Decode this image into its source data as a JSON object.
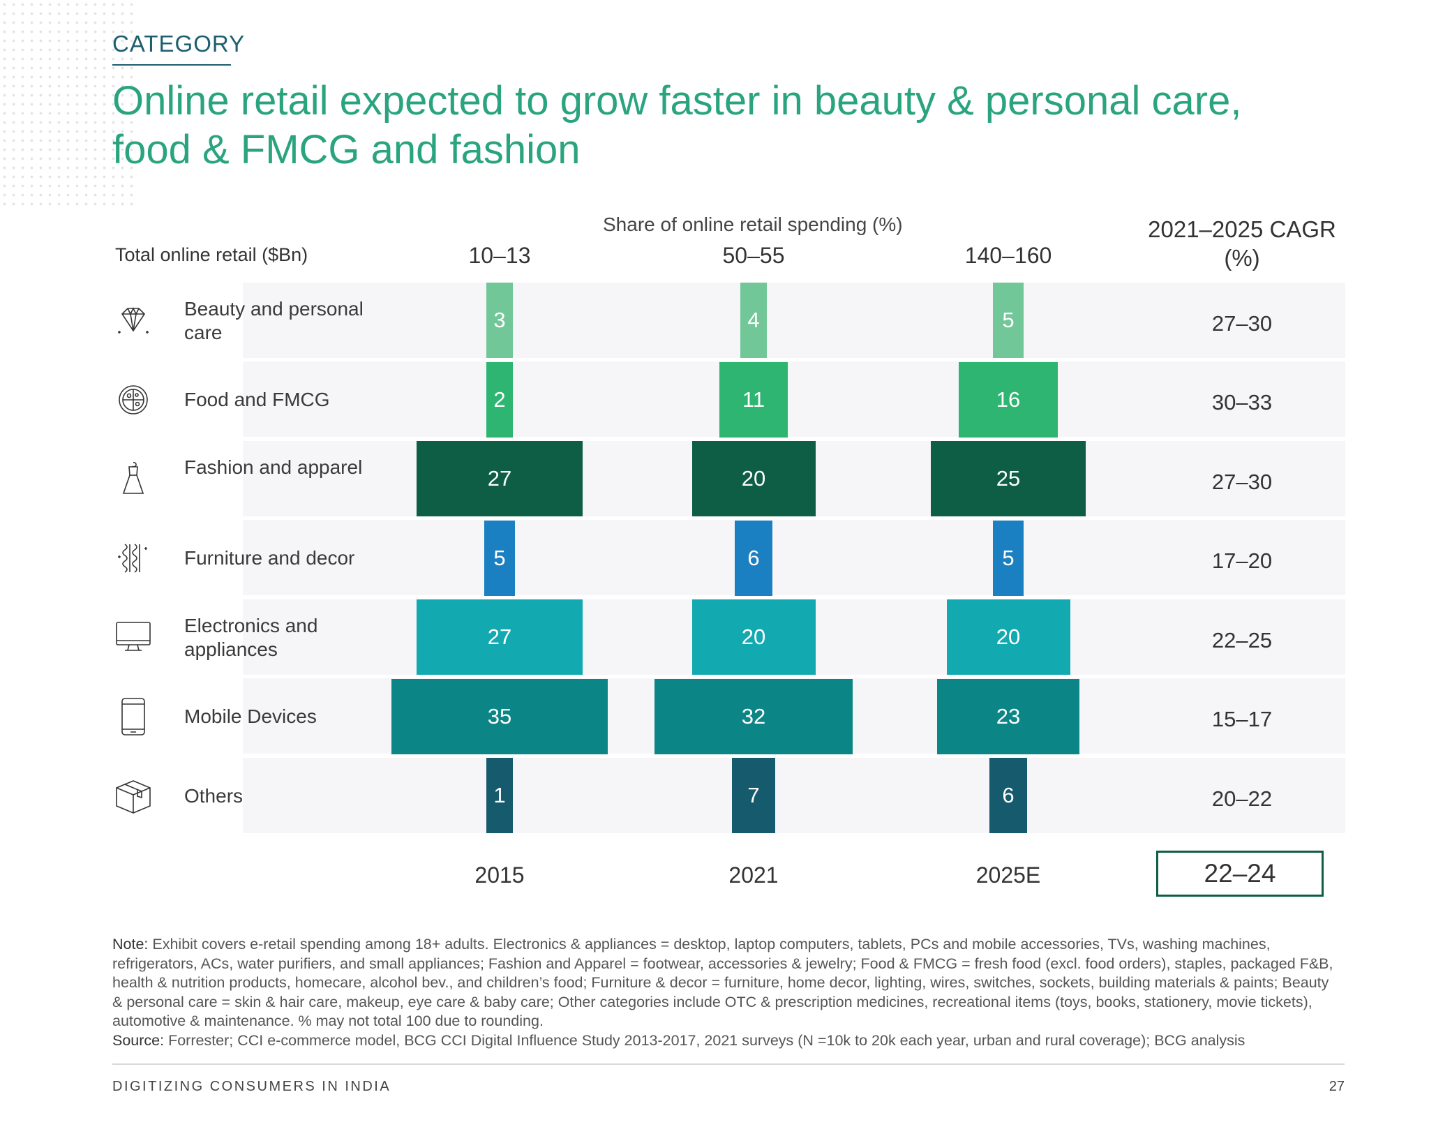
{
  "header": {
    "category": "CATEGORY",
    "title": "Online retail expected to grow faster in beauty & personal care, food & FMCG and fashion"
  },
  "chart_data": {
    "type": "table",
    "subtitle": "Share of online retail spending (%)",
    "total_label": "Total online retail ($Bn)",
    "cagr_header": "2021–2025 CAGR (%)",
    "years": [
      "2015",
      "2021",
      "2025E"
    ],
    "totals": [
      "10–13",
      "50–55",
      "140–160"
    ],
    "categories": [
      {
        "name": "Beauty and personal care",
        "icon": "diamond-icon",
        "values": [
          3,
          4,
          5
        ],
        "cagr": "27–30",
        "color": "#71c798"
      },
      {
        "name": "Food and FMCG",
        "icon": "pizza-icon",
        "values": [
          2,
          11,
          16
        ],
        "cagr": "30–33",
        "color": "#2db571"
      },
      {
        "name": "Fashion and apparel",
        "icon": "dress-icon",
        "values": [
          27,
          20,
          25
        ],
        "cagr": "27–30",
        "color": "#0d5e44"
      },
      {
        "name": "Furniture and decor",
        "icon": "lamp-icon",
        "values": [
          5,
          6,
          5
        ],
        "cagr": "17–20",
        "color": "#1b80c2"
      },
      {
        "name": "Electronics and appliances",
        "icon": "monitor-icon",
        "values": [
          27,
          20,
          20
        ],
        "cagr": "22–25",
        "color": "#13a9b0"
      },
      {
        "name": "Mobile Devices",
        "icon": "phone-icon",
        "values": [
          35,
          32,
          23
        ],
        "cagr": "15–17",
        "color": "#0b8585"
      },
      {
        "name": "Others",
        "icon": "box-icon",
        "values": [
          1,
          7,
          6
        ],
        "cagr": "20–22",
        "color": "#165a6e"
      }
    ],
    "total_cagr": "22–24"
  },
  "note": {
    "note_label": "Note:",
    "note_text": "Exhibit covers e-retail spending among 18+ adults. Electronics & appliances = desktop, laptop computers, tablets, PCs and mobile accessories, TVs, washing machines, refrigerators, ACs, water purifiers, and small appliances; Fashion and Apparel = footwear, accessories & jewelry; Food & FMCG = fresh food (excl. food orders), staples, packaged F&B, health & nutrition products, homecare, alcohol bev., and children’s food; Furniture & decor = furniture, home decor, lighting, wires, switches, sockets, building materials & paints; Beauty & personal care = skin & hair care, makeup, eye care & baby care; Other categories include OTC & prescription medicines, recreational items (toys, books, stationery, movie tickets), automotive & maintenance. % may not total 100 due to rounding.",
    "source_label": "Source:",
    "source_text": "Forrester; CCI e-commerce model, BCG CCI Digital Influence Study 2013-2017, 2021 surveys (N =10k to 20k each year, urban and rural coverage); BCG analysis"
  },
  "footer": {
    "left": "DIGITIZING CONSUMERS IN INDIA",
    "page": "27"
  }
}
